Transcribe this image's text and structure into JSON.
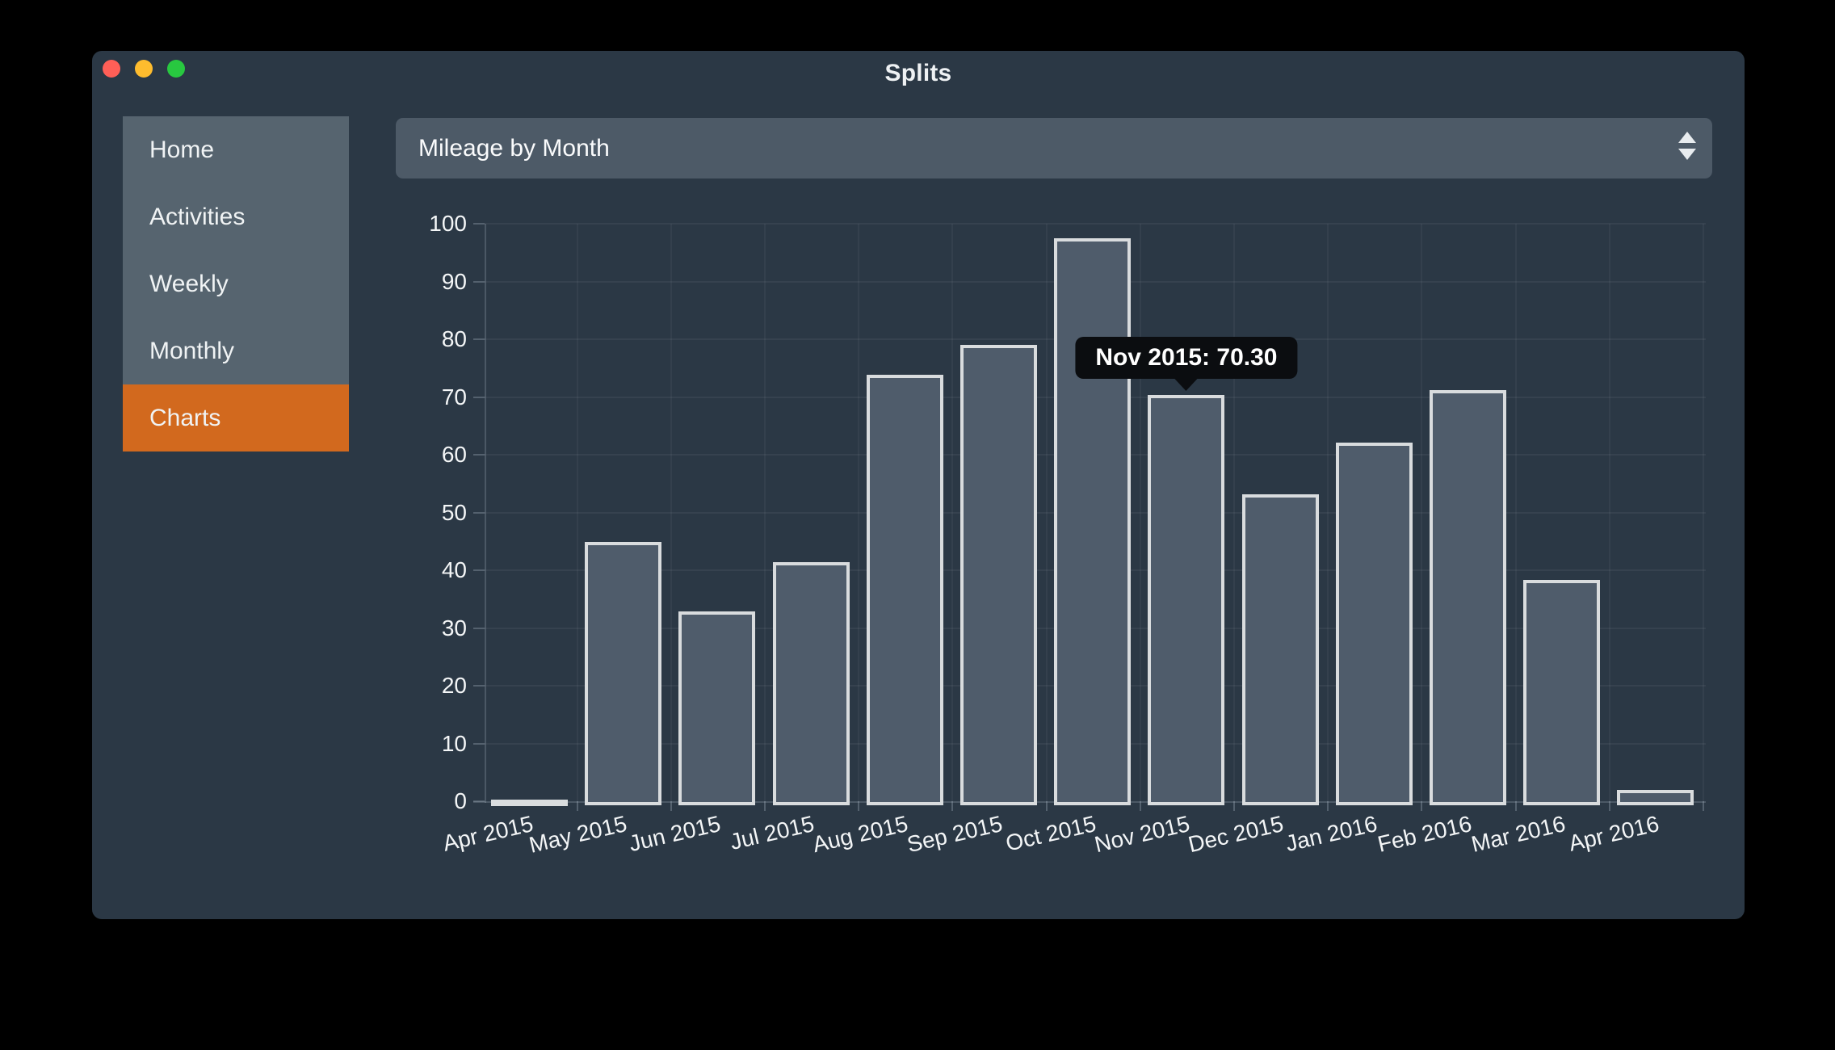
{
  "window": {
    "title": "Splits"
  },
  "sidebar": {
    "items": [
      {
        "label": "Home",
        "active": false
      },
      {
        "label": "Activities",
        "active": false
      },
      {
        "label": "Weekly",
        "active": false
      },
      {
        "label": "Monthly",
        "active": false
      },
      {
        "label": "Charts",
        "active": true
      }
    ]
  },
  "dropdown": {
    "value": "Mileage by Month"
  },
  "chart_data": {
    "type": "bar",
    "title": "Mileage by Month",
    "categories": [
      "Apr 2015",
      "May 2015",
      "Jun 2015",
      "Jul 2015",
      "Aug 2015",
      "Sep 2015",
      "Oct 2015",
      "Nov 2015",
      "Dec 2015",
      "Jan 2016",
      "Feb 2016",
      "Mar 2016",
      "Apr 2016"
    ],
    "values": [
      0.3,
      44.9,
      32.8,
      41.4,
      73.8,
      79.0,
      97.5,
      70.3,
      53.1,
      62.1,
      71.2,
      38.3,
      2.0
    ],
    "xlabel": "",
    "ylabel": "",
    "ylim": [
      0,
      100
    ],
    "yticks": [
      0,
      10,
      20,
      30,
      40,
      50,
      60,
      70,
      80,
      90,
      100
    ],
    "grid": true,
    "legend": "none",
    "tooltip": {
      "text": "Nov 2015: 70.30",
      "category": "Nov 2015"
    }
  },
  "colors": {
    "accent_orange": "#d2691e",
    "window_bg": "#2b3845",
    "sidebar_bg": "#56646f",
    "dropdown_bg": "#4d5a67",
    "bar_fill": "#4f5c6b",
    "bar_stroke": "#d9dcde",
    "tooltip_bg": "#0b0d10",
    "traffic_red": "#ff5f57",
    "traffic_yellow": "#febc2e",
    "traffic_green": "#28c840"
  }
}
